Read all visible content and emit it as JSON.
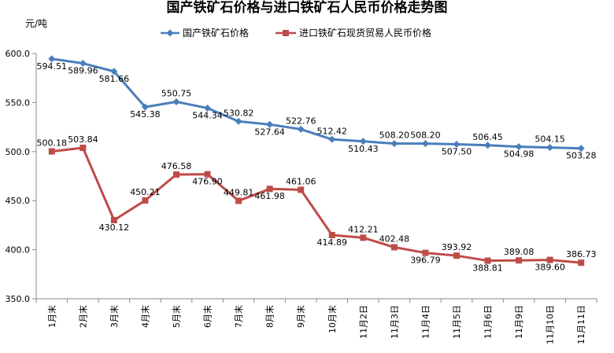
{
  "chart_data": {
    "type": "line",
    "title": "国产铁矿石价格与进口铁矿石人民币价格走势图",
    "ylabel": "元/吨",
    "ylim": [
      350,
      600
    ],
    "yticks": [
      "350.0",
      "400.0",
      "450.0",
      "500.0",
      "550.0",
      "600.0"
    ],
    "categories": [
      "1月末",
      "2月末",
      "3月末",
      "4月末",
      "5月末",
      "6月末",
      "7月末",
      "8月末",
      "9月末",
      "10月末",
      "11月2日",
      "11月3日",
      "11月4日",
      "11月5日",
      "11月6日",
      "11月9日",
      "11月10日",
      "11月11日"
    ],
    "legend_position": "top",
    "series": [
      {
        "name": "国产铁矿石价格",
        "color": "#4A7EBB",
        "marker": "diamond",
        "values": [
          594.51,
          589.96,
          581.66,
          545.38,
          550.75,
          544.34,
          530.82,
          527.64,
          522.76,
          512.42,
          510.43,
          508.2,
          508.2,
          507.5,
          506.45,
          504.98,
          504.15,
          503.28
        ],
        "labels": [
          "594.51",
          "589.96",
          "581.66",
          "545.38",
          "550.75",
          "544.34",
          "530.82",
          "527.64",
          "522.76",
          "512.42",
          "510.43",
          "508.20",
          "508.20",
          "507.50",
          "506.45",
          "504.98",
          "504.15",
          "503.28"
        ]
      },
      {
        "name": "进口铁矿石现货贸易人民币价格",
        "color": "#BE4B48",
        "marker": "square",
        "values": [
          500.18,
          503.84,
          430.12,
          450.21,
          476.58,
          476.9,
          449.81,
          461.98,
          461.06,
          414.89,
          412.21,
          402.48,
          396.79,
          393.92,
          388.81,
          389.08,
          389.6,
          386.73
        ],
        "labels": [
          "500.18",
          "503.84",
          "430.12",
          "450.21",
          "476.58",
          "476.90",
          "449.81",
          "461.98",
          "461.06",
          "414.89",
          "412.21",
          "402.48",
          "396.79",
          "393.92",
          "388.81",
          "389.08",
          "389.60",
          "386.73"
        ]
      }
    ]
  }
}
